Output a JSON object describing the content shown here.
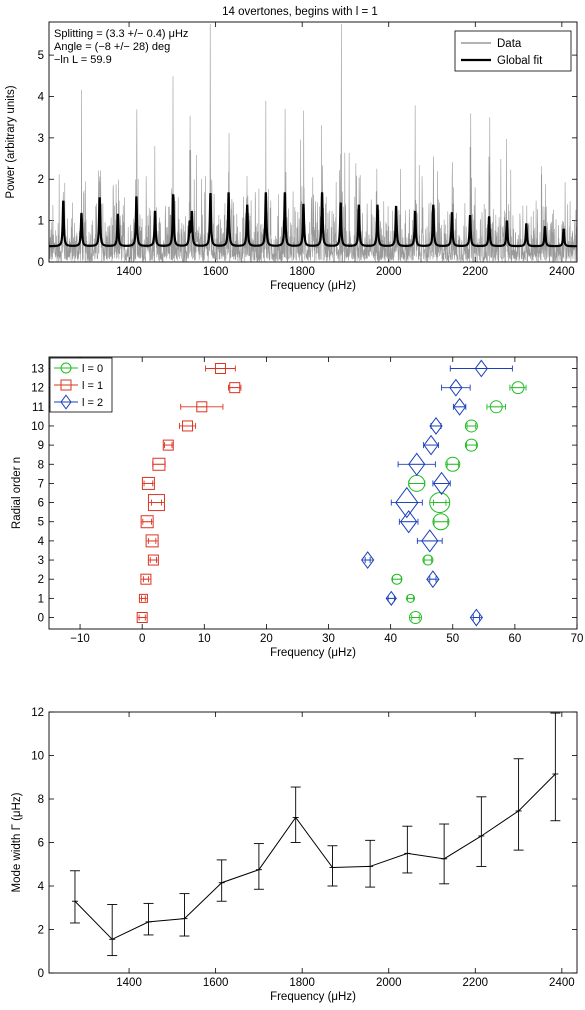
{
  "page": {
    "title": "14 overtones, begins with l = 1"
  },
  "chart_data": [
    {
      "id": "power",
      "type": "line",
      "xlabel": "Frequency (μHz)",
      "ylabel": "Power (arbitrary units)",
      "xlim": [
        1215,
        2435
      ],
      "ylim": [
        0,
        5.8
      ],
      "xticks": [
        1400,
        1600,
        1800,
        2000,
        2200,
        2400
      ],
      "yticks": [
        0,
        1,
        2,
        3,
        4,
        5
      ],
      "grid": false,
      "legend_position": "top-right",
      "annotations": [
        "Splitting = (3.3 +/− 0.4) μHz",
        "Angle = (−8 +/− 28) deg",
        "−ln L = 59.9"
      ],
      "series": [
        {
          "name": "Data",
          "color": "#999999",
          "style": "noisy spectrum"
        },
        {
          "name": "Global fit",
          "color": "#000000",
          "background": 0.38,
          "peaks": [
            [
              1248,
              1.1
            ],
            [
              1290,
              0.8
            ],
            [
              1332,
              1.18
            ],
            [
              1374,
              0.78
            ],
            [
              1417,
              1.2
            ],
            [
              1460,
              0.85
            ],
            [
              1502,
              1.25
            ],
            [
              1540,
              0.55
            ],
            [
              1545,
              0.8
            ],
            [
              1588,
              1.28
            ],
            [
              1630,
              1.3
            ],
            [
              1673,
              1.0
            ],
            [
              1716,
              1.3
            ],
            [
              1760,
              1.3
            ],
            [
              1803,
              1.02
            ],
            [
              1846,
              1.3
            ],
            [
              1889,
              1.05
            ],
            [
              1931,
              1.0
            ],
            [
              1974,
              1.0
            ],
            [
              2017,
              0.97
            ],
            [
              2061,
              0.85
            ],
            [
              2103,
              1.0
            ],
            [
              2146,
              0.82
            ],
            [
              2188,
              0.75
            ],
            [
              2232,
              0.72
            ],
            [
              2273,
              0.62
            ],
            [
              2318,
              0.55
            ],
            [
              2361,
              0.48
            ],
            [
              2404,
              0.42
            ]
          ]
        }
      ]
    },
    {
      "id": "echelle",
      "type": "scatter",
      "xlabel": "Frequency (μHz)",
      "ylabel": "Radial order n",
      "xlim": [
        -15,
        70
      ],
      "ylim": [
        -0.6,
        13.6
      ],
      "xticks": [
        -10,
        0,
        10,
        20,
        30,
        40,
        50,
        60,
        70
      ],
      "yticks": [
        0,
        1,
        2,
        3,
        4,
        5,
        6,
        7,
        8,
        9,
        10,
        11,
        12,
        13
      ],
      "grid": false,
      "legend_position": "top-left",
      "series": [
        {
          "name": "l = 0",
          "marker": "circle",
          "color": "#22bb22",
          "points": [
            [
              44,
              0,
              0.6,
              6
            ],
            [
              43.2,
              1,
              0.5,
              4
            ],
            [
              41,
              2,
              0.7,
              5
            ],
            [
              46,
              3,
              0.6,
              5
            ],
            [
              50,
              8,
              0.9,
              7
            ],
            [
              53,
              9,
              0.8,
              6
            ],
            [
              53,
              10,
              0.7,
              6
            ],
            [
              57,
              11,
              1.5,
              6
            ],
            [
              60.5,
              12,
              1.3,
              6
            ],
            [
              48.1,
              5,
              1.1,
              8
            ],
            [
              47.9,
              6,
              1.0,
              10
            ],
            [
              44.2,
              7,
              1.3,
              8
            ]
          ]
        },
        {
          "name": "l = 1",
          "marker": "square",
          "color": "#dd3322",
          "points": [
            [
              0,
              0,
              0.5,
              5
            ],
            [
              0.2,
              1,
              0.3,
              4
            ],
            [
              0.6,
              2,
              0.4,
              5
            ],
            [
              1.8,
              3,
              0.5,
              5
            ],
            [
              1.6,
              4,
              0.6,
              6
            ],
            [
              0.8,
              5,
              0.7,
              6
            ],
            [
              2.3,
              6,
              0.8,
              8
            ],
            [
              1.0,
              7,
              0.7,
              6
            ],
            [
              2.7,
              8,
              1.0,
              6
            ],
            [
              4.2,
              9,
              0.6,
              5
            ],
            [
              7.3,
              10,
              1.3,
              5
            ],
            [
              9.6,
              11,
              3.4,
              5
            ],
            [
              14.9,
              12,
              1.0,
              5
            ],
            [
              12.6,
              13,
              2.4,
              5
            ]
          ]
        },
        {
          "name": "l = 2",
          "marker": "diamond",
          "color": "#1a3fbb",
          "points": [
            [
              53.8,
              0,
              0.5,
              6
            ],
            [
              40.1,
              1,
              0.5,
              5
            ],
            [
              46.8,
              2,
              0.5,
              6
            ],
            [
              36.3,
              3,
              0.4,
              6
            ],
            [
              46.3,
              4,
              2.0,
              8
            ],
            [
              42.9,
              5,
              1.5,
              8
            ],
            [
              42.6,
              6,
              2.5,
              11
            ],
            [
              48.2,
              7,
              1.4,
              8
            ],
            [
              44.2,
              8,
              3.0,
              8
            ],
            [
              46.5,
              9,
              1.2,
              7
            ],
            [
              47.3,
              10,
              0.8,
              6
            ],
            [
              51.1,
              11,
              1.0,
              6
            ],
            [
              50.5,
              12,
              2.3,
              6
            ],
            [
              54.6,
              13,
              5.0,
              6
            ]
          ]
        }
      ]
    },
    {
      "id": "width",
      "type": "line",
      "xlabel": "Frequency (μHz)",
      "ylabel": "Mode width Γ (μHz)",
      "xlim": [
        1215,
        2435
      ],
      "ylim": [
        0,
        12
      ],
      "xticks": [
        1400,
        1600,
        1800,
        2000,
        2200,
        2400
      ],
      "yticks": [
        0,
        2,
        4,
        6,
        8,
        10,
        12
      ],
      "grid": false,
      "series": [
        {
          "name": "",
          "color": "#000000",
          "points": [
            [
              1275,
              3.3,
              2.3,
              4.7
            ],
            [
              1361,
              1.55,
              0.8,
              3.15
            ],
            [
              1445,
              2.35,
              1.75,
              3.2
            ],
            [
              1528,
              2.5,
              1.7,
              3.65
            ],
            [
              1614,
              4.15,
              3.3,
              5.2
            ],
            [
              1700,
              4.75,
              3.85,
              5.95
            ],
            [
              1785,
              7.15,
              6.0,
              8.55
            ],
            [
              1870,
              4.85,
              4.0,
              5.85
            ],
            [
              1957,
              4.9,
              3.95,
              6.1
            ],
            [
              2043,
              5.5,
              4.6,
              6.75
            ],
            [
              2128,
              5.25,
              4.1,
              6.85
            ],
            [
              2214,
              6.3,
              4.9,
              8.1
            ],
            [
              2300,
              7.45,
              5.65,
              9.85
            ],
            [
              2385,
              9.15,
              7.0,
              11.95
            ]
          ]
        }
      ]
    }
  ]
}
